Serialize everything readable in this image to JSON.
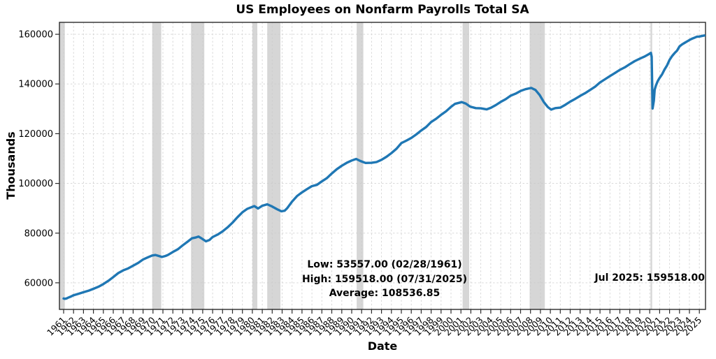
{
  "chart_data": {
    "type": "line",
    "title": "US Employees on Nonfarm Payrolls Total SA",
    "xlabel": "Date",
    "ylabel": "Thousands",
    "grid": true,
    "legend": "none",
    "line_color": "#1f77b4",
    "recession_band_color": "#808080",
    "recession_band_opacity": 0.32,
    "grid_color": "#c9c9c9",
    "spine_color": "#2b2b2b",
    "xlim": [
      1960.58,
      2025.62
    ],
    "ylim": [
      49300,
      164800
    ],
    "x_ticks": [
      1961,
      1962,
      1963,
      1964,
      1965,
      1966,
      1967,
      1968,
      1969,
      1970,
      1971,
      1972,
      1973,
      1974,
      1975,
      1976,
      1977,
      1978,
      1979,
      1980,
      1981,
      1982,
      1983,
      1984,
      1985,
      1986,
      1987,
      1988,
      1989,
      1990,
      1991,
      1992,
      1993,
      1994,
      1995,
      1996,
      1997,
      1998,
      1999,
      2000,
      2001,
      2002,
      2003,
      2004,
      2005,
      2006,
      2007,
      2008,
      2009,
      2010,
      2011,
      2012,
      2013,
      2014,
      2015,
      2016,
      2017,
      2018,
      2019,
      2020,
      2021,
      2022,
      2023,
      2024,
      2025
    ],
    "y_ticks": [
      60000,
      80000,
      100000,
      120000,
      140000,
      160000
    ],
    "recession_bands": [
      [
        1960.25,
        1961.12
      ],
      [
        1969.92,
        1970.83
      ],
      [
        1973.83,
        1975.17
      ],
      [
        1980.0,
        1980.5
      ],
      [
        1981.5,
        1982.83
      ],
      [
        1990.5,
        1991.17
      ],
      [
        2001.17,
        2001.83
      ],
      [
        2007.92,
        2009.45
      ],
      [
        2020.08,
        2020.25
      ]
    ],
    "series": [
      {
        "name": "US Employees on Nonfarm Payrolls Total SA",
        "points": [
          [
            1961.0,
            53683
          ],
          [
            1961.12,
            53557
          ],
          [
            1961.3,
            53700
          ],
          [
            1961.5,
            54100
          ],
          [
            1961.75,
            54500
          ],
          [
            1962.0,
            55000
          ],
          [
            1962.5,
            55600
          ],
          [
            1963.0,
            56200
          ],
          [
            1963.5,
            56800
          ],
          [
            1964.0,
            57600
          ],
          [
            1964.5,
            58400
          ],
          [
            1965.0,
            59500
          ],
          [
            1965.5,
            60800
          ],
          [
            1966.0,
            62300
          ],
          [
            1966.5,
            63900
          ],
          [
            1967.0,
            65000
          ],
          [
            1967.5,
            65800
          ],
          [
            1968.0,
            66900
          ],
          [
            1968.5,
            68000
          ],
          [
            1969.0,
            69400
          ],
          [
            1969.5,
            70300
          ],
          [
            1969.92,
            71000
          ],
          [
            1970.25,
            71200
          ],
          [
            1970.5,
            70900
          ],
          [
            1970.9,
            70400
          ],
          [
            1971.25,
            70800
          ],
          [
            1971.5,
            71200
          ],
          [
            1972.0,
            72400
          ],
          [
            1972.5,
            73500
          ],
          [
            1973.0,
            75100
          ],
          [
            1973.5,
            76600
          ],
          [
            1973.92,
            77900
          ],
          [
            1974.25,
            78200
          ],
          [
            1974.58,
            78600
          ],
          [
            1974.92,
            77800
          ],
          [
            1975.33,
            76700
          ],
          [
            1975.67,
            77200
          ],
          [
            1976.0,
            78400
          ],
          [
            1976.5,
            79400
          ],
          [
            1977.0,
            80700
          ],
          [
            1977.5,
            82300
          ],
          [
            1978.0,
            84200
          ],
          [
            1978.5,
            86400
          ],
          [
            1979.0,
            88400
          ],
          [
            1979.5,
            89800
          ],
          [
            1980.2,
            90870
          ],
          [
            1980.58,
            89900
          ],
          [
            1981.0,
            91000
          ],
          [
            1981.5,
            91600
          ],
          [
            1982.0,
            90700
          ],
          [
            1982.5,
            89600
          ],
          [
            1982.92,
            88770
          ],
          [
            1983.25,
            89000
          ],
          [
            1983.5,
            90000
          ],
          [
            1984.0,
            92700
          ],
          [
            1984.5,
            94900
          ],
          [
            1985.0,
            96400
          ],
          [
            1985.5,
            97700
          ],
          [
            1986.0,
            98900
          ],
          [
            1986.5,
            99400
          ],
          [
            1987.0,
            100800
          ],
          [
            1987.5,
            102100
          ],
          [
            1988.0,
            104000
          ],
          [
            1988.5,
            105700
          ],
          [
            1989.0,
            107100
          ],
          [
            1989.5,
            108300
          ],
          [
            1990.0,
            109200
          ],
          [
            1990.45,
            109820
          ],
          [
            1990.9,
            109000
          ],
          [
            1991.4,
            108230
          ],
          [
            1992.0,
            108300
          ],
          [
            1992.5,
            108600
          ],
          [
            1993.0,
            109500
          ],
          [
            1993.5,
            110700
          ],
          [
            1994.0,
            112200
          ],
          [
            1994.5,
            113900
          ],
          [
            1995.0,
            116200
          ],
          [
            1995.5,
            117200
          ],
          [
            1996.0,
            118300
          ],
          [
            1996.5,
            119700
          ],
          [
            1997.0,
            121300
          ],
          [
            1997.5,
            122700
          ],
          [
            1998.0,
            124700
          ],
          [
            1998.5,
            126000
          ],
          [
            1999.0,
            127600
          ],
          [
            1999.5,
            129000
          ],
          [
            2000.0,
            130800
          ],
          [
            2000.4,
            132000
          ],
          [
            2001.08,
            132720
          ],
          [
            2001.5,
            132100
          ],
          [
            2001.92,
            130900
          ],
          [
            2002.5,
            130300
          ],
          [
            2003.0,
            130200
          ],
          [
            2003.58,
            129790
          ],
          [
            2004.0,
            130400
          ],
          [
            2004.5,
            131500
          ],
          [
            2005.0,
            132800
          ],
          [
            2005.5,
            133900
          ],
          [
            2006.0,
            135300
          ],
          [
            2006.5,
            136100
          ],
          [
            2007.0,
            137200
          ],
          [
            2007.5,
            137900
          ],
          [
            2008.08,
            138400
          ],
          [
            2008.5,
            137600
          ],
          [
            2008.92,
            135600
          ],
          [
            2009.33,
            132800
          ],
          [
            2009.75,
            130700
          ],
          [
            2010.08,
            129700
          ],
          [
            2010.5,
            130300
          ],
          [
            2011.0,
            130500
          ],
          [
            2011.5,
            131600
          ],
          [
            2012.0,
            132900
          ],
          [
            2012.5,
            134000
          ],
          [
            2013.0,
            135200
          ],
          [
            2013.5,
            136300
          ],
          [
            2014.0,
            137600
          ],
          [
            2014.5,
            138900
          ],
          [
            2015.0,
            140600
          ],
          [
            2015.5,
            141900
          ],
          [
            2016.0,
            143200
          ],
          [
            2016.5,
            144400
          ],
          [
            2017.0,
            145700
          ],
          [
            2017.5,
            146700
          ],
          [
            2018.0,
            148000
          ],
          [
            2018.5,
            149200
          ],
          [
            2019.0,
            150200
          ],
          [
            2019.5,
            151100
          ],
          [
            2019.92,
            152000
          ],
          [
            2020.12,
            152520
          ],
          [
            2020.2,
            151000
          ],
          [
            2020.29,
            130160
          ],
          [
            2020.42,
            133200
          ],
          [
            2020.5,
            137700
          ],
          [
            2020.63,
            139400
          ],
          [
            2020.79,
            141000
          ],
          [
            2020.96,
            142200
          ],
          [
            2021.25,
            143900
          ],
          [
            2021.5,
            145900
          ],
          [
            2021.75,
            147500
          ],
          [
            2022.0,
            149700
          ],
          [
            2022.25,
            151200
          ],
          [
            2022.5,
            152400
          ],
          [
            2022.75,
            153400
          ],
          [
            2023.0,
            155100
          ],
          [
            2023.25,
            155900
          ],
          [
            2023.5,
            156500
          ],
          [
            2023.75,
            157100
          ],
          [
            2024.0,
            157700
          ],
          [
            2024.25,
            158200
          ],
          [
            2024.5,
            158600
          ],
          [
            2024.75,
            159000
          ],
          [
            2025.0,
            159100
          ],
          [
            2025.25,
            159300
          ],
          [
            2025.5,
            159518
          ]
        ]
      }
    ],
    "annotations": {
      "low": "Low: 53557.00 (02/28/1961)",
      "high": "High: 159518.00 (07/31/2025)",
      "average": "Average: 108536.85",
      "last": "Jul 2025: 159518.00"
    }
  }
}
